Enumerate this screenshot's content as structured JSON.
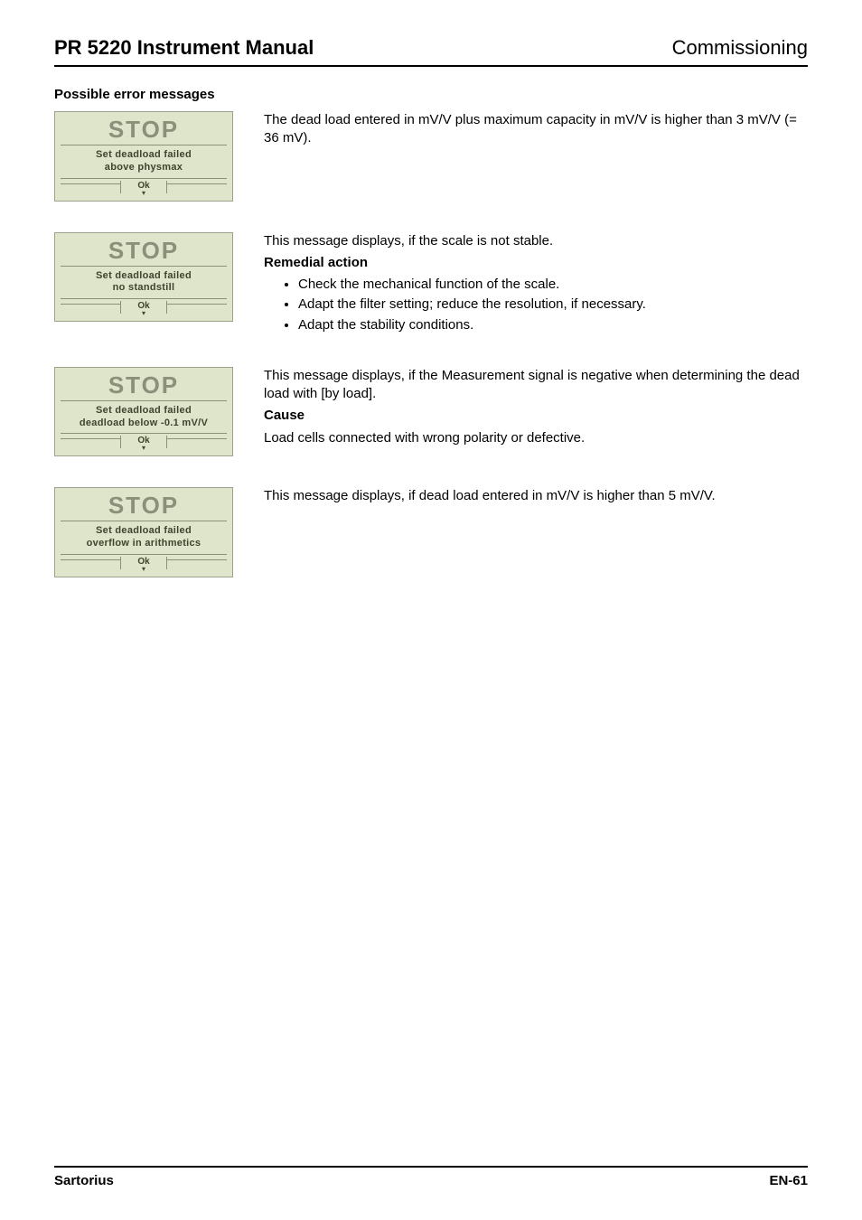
{
  "header": {
    "left": "PR 5220 Instrument Manual",
    "right": "Commissioning"
  },
  "section_title": "Possible error messages",
  "panel_common": {
    "stop_label": "STOP",
    "ok_label": "Ok",
    "bg_color": "#dfe5cb",
    "stop_color": "#8a907a",
    "text_color": "#40442f",
    "border_color": "#8a907a"
  },
  "errors": [
    {
      "panel_lines": [
        "Set deadload failed",
        "above physmax"
      ],
      "description": "The dead load entered in mV/V plus maximum capacity in mV/V is higher than 3 mV/V (= 36 mV).",
      "subhead": null,
      "bullets": []
    },
    {
      "panel_lines": [
        "Set deadload failed",
        "no standstill"
      ],
      "description": "This message displays, if the scale is not stable.",
      "subhead": "Remedial action",
      "bullets": [
        "Check the mechanical function of the scale.",
        "Adapt the filter setting; reduce the resolution, if necessary.",
        "Adapt the stability conditions."
      ]
    },
    {
      "panel_lines": [
        "Set deadload failed",
        "deadload below -0.1 mV/V"
      ],
      "description": "This message displays, if the Measurement signal is negative when determining the dead load with [by load].",
      "subhead": "Cause",
      "cause_text": "Load cells connected with wrong polarity or defective.",
      "bullets": []
    },
    {
      "panel_lines": [
        "Set deadload failed",
        "overflow in arithmetics"
      ],
      "description": "This message displays, if dead load entered in mV/V is higher than 5 mV/V.",
      "subhead": null,
      "bullets": []
    }
  ],
  "footer": {
    "left": "Sartorius",
    "right": "EN-61"
  }
}
